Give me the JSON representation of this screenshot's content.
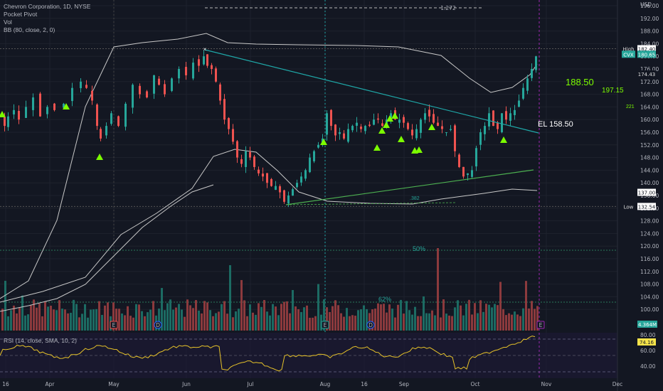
{
  "header": {
    "title": "Chevron Corporation, 1D, NYSE",
    "indicators": [
      "Pocket Pivot",
      "Vol",
      "BB (80, close, 2, 0)"
    ],
    "currency": "USD"
  },
  "rsi_title": "RSI (14, close, SMA, 10, 2)",
  "price_tags": {
    "high_label": "High",
    "high_value": "182.40",
    "symbol": "CVX",
    "last_value": "180.65",
    "bb_value": "174.43",
    "bb_lower_value": "137.00",
    "low_label": "Low",
    "low_value": "132.54",
    "volume_value": "4.364M",
    "rsi_value": "74.16"
  },
  "annotations": {
    "fib_top": "1.272",
    "target1": "188.50",
    "target2": "197.15",
    "target3": "221",
    "el_label": "EL  158.50",
    "fib382": ".382",
    "fib50": "50%",
    "fib62": "62%"
  },
  "colors": {
    "bg": "#131722",
    "up": "#26a69a",
    "down": "#ef5350",
    "pivot": "#7cfc00",
    "trendline": "#1fa8a8",
    "support": "#4caf50",
    "bb": "#c8c8c8",
    "rsi": "#e6c229"
  },
  "chart_data": {
    "type": "candlestick",
    "title": "Chevron Corporation, 1D, NYSE",
    "y_ticks": [
      100,
      104,
      108,
      112,
      116,
      120,
      124,
      128,
      132,
      136,
      140,
      144,
      148,
      152,
      156,
      160,
      164,
      168,
      172,
      176,
      180,
      184,
      188,
      192,
      196
    ],
    "ylim": [
      98,
      197
    ],
    "x_ticks": [
      "16",
      "Apr",
      "May",
      "Jun",
      "Jul",
      "Aug",
      "16",
      "Sep",
      "Oct",
      "Nov",
      "Dec"
    ],
    "rsi_ticks": [
      80.0,
      60.0,
      40.0
    ],
    "event_markers": [
      "E",
      "D",
      "E",
      "D",
      "E"
    ],
    "candles_close_anchor": [
      [
        0,
        160
      ],
      [
        5,
        158
      ],
      [
        10,
        161
      ],
      [
        18,
        163
      ],
      [
        25,
        160
      ],
      [
        35,
        164
      ],
      [
        45,
        167
      ],
      [
        55,
        161
      ],
      [
        65,
        164
      ],
      [
        75,
        163
      ],
      [
        88,
        165
      ],
      [
        100,
        170
      ],
      [
        112,
        172
      ],
      [
        120,
        170
      ],
      [
        128,
        166
      ],
      [
        135,
        158
      ],
      [
        140,
        154
      ],
      [
        148,
        158
      ],
      [
        155,
        162
      ],
      [
        165,
        158
      ],
      [
        175,
        165
      ],
      [
        185,
        171
      ],
      [
        195,
        168
      ],
      [
        205,
        167
      ],
      [
        215,
        174
      ],
      [
        222,
        171
      ],
      [
        230,
        168
      ],
      [
        240,
        173
      ],
      [
        250,
        176
      ],
      [
        260,
        174
      ],
      [
        270,
        178
      ],
      [
        278,
        177
      ],
      [
        285,
        180
      ],
      [
        290,
        177
      ],
      [
        296,
        176
      ],
      [
        302,
        172
      ],
      [
        308,
        166
      ],
      [
        314,
        160
      ],
      [
        320,
        157
      ],
      [
        326,
        153
      ],
      [
        332,
        148
      ],
      [
        338,
        146
      ],
      [
        344,
        150
      ],
      [
        350,
        148
      ],
      [
        356,
        145
      ],
      [
        362,
        143
      ],
      [
        368,
        142
      ],
      [
        374,
        140
      ],
      [
        380,
        139
      ],
      [
        386,
        139
      ],
      [
        392,
        137
      ],
      [
        398,
        134
      ],
      [
        404,
        136
      ],
      [
        410,
        138
      ],
      [
        416,
        140
      ],
      [
        422,
        142
      ],
      [
        428,
        144
      ],
      [
        434,
        148
      ],
      [
        440,
        150
      ],
      [
        446,
        152
      ],
      [
        452,
        154
      ],
      [
        458,
        162
      ],
      [
        464,
        158
      ],
      [
        470,
        155
      ],
      [
        476,
        156
      ],
      [
        482,
        154
      ],
      [
        488,
        157
      ],
      [
        494,
        158
      ],
      [
        500,
        159
      ],
      [
        506,
        157
      ],
      [
        512,
        158
      ],
      [
        518,
        158
      ],
      [
        524,
        160
      ],
      [
        530,
        160
      ],
      [
        536,
        158
      ],
      [
        542,
        160
      ],
      [
        548,
        162
      ],
      [
        554,
        160
      ],
      [
        560,
        160
      ],
      [
        566,
        159
      ],
      [
        572,
        157
      ],
      [
        578,
        155
      ],
      [
        584,
        157
      ],
      [
        590,
        160
      ],
      [
        596,
        162
      ],
      [
        602,
        161
      ],
      [
        608,
        159
      ],
      [
        614,
        158
      ],
      [
        620,
        157
      ],
      [
        626,
        156
      ],
      [
        632,
        157
      ],
      [
        638,
        150
      ],
      [
        644,
        145
      ],
      [
        650,
        142
      ],
      [
        656,
        143
      ],
      [
        662,
        144
      ],
      [
        668,
        151
      ],
      [
        674,
        156
      ],
      [
        680,
        158
      ],
      [
        686,
        162
      ],
      [
        692,
        158
      ],
      [
        698,
        157
      ],
      [
        704,
        162
      ],
      [
        710,
        160
      ],
      [
        716,
        162
      ],
      [
        722,
        163
      ],
      [
        728,
        166
      ],
      [
        734,
        170
      ],
      [
        740,
        173
      ],
      [
        746,
        176
      ],
      [
        752,
        180
      ]
    ]
  }
}
